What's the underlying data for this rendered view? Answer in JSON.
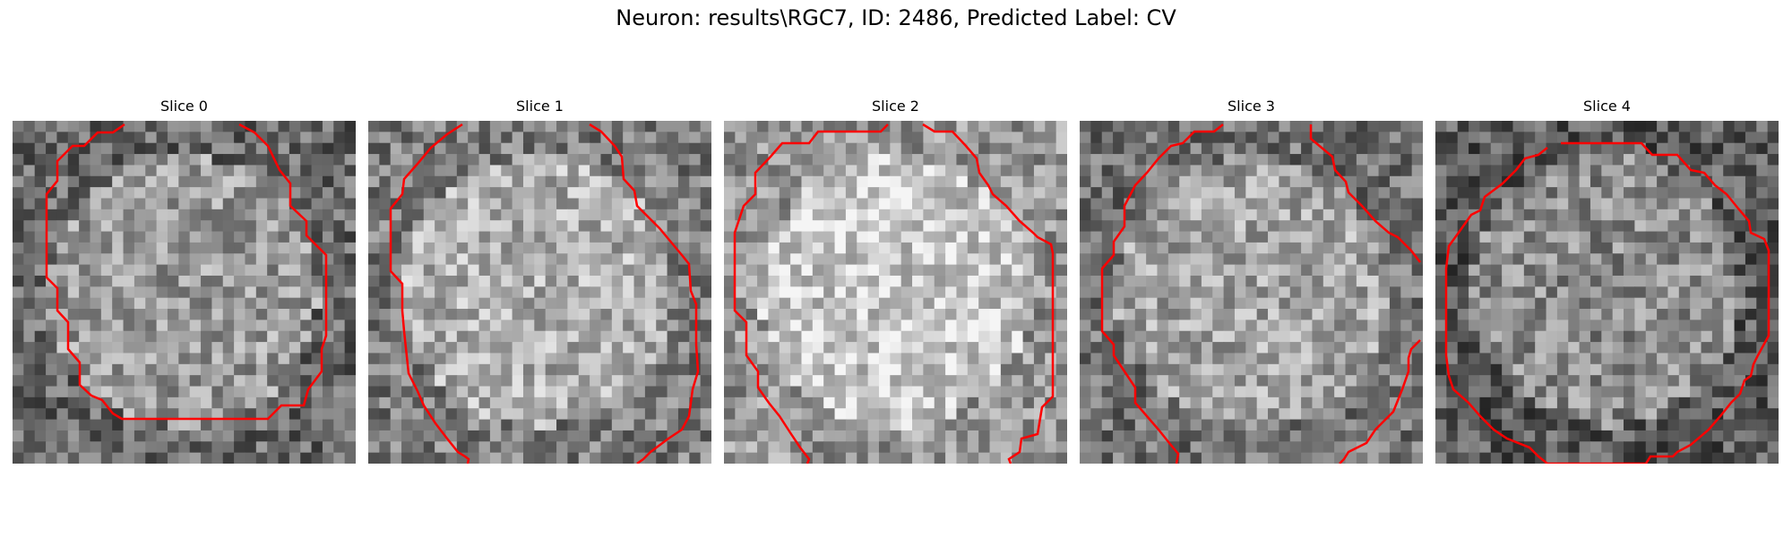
{
  "figure": {
    "title": "Neuron: results\\RGC7, ID: 2486, Predicted Label: CV"
  },
  "colors": {
    "contour": "#ff0000",
    "background": "#ffffff"
  },
  "panels": [
    {
      "title": "Slice 0"
    },
    {
      "title": "Slice 1"
    },
    {
      "title": "Slice 2"
    },
    {
      "title": "Slice 3"
    },
    {
      "title": "Slice 4"
    }
  ]
}
